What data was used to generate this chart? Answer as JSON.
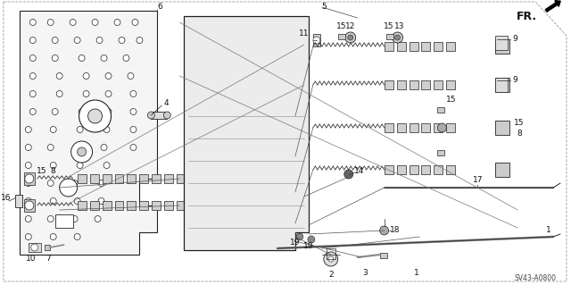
{
  "figsize": [
    6.4,
    3.19
  ],
  "dpi": 100,
  "bg": "#ffffff",
  "lc": "#222222",
  "diagram_code": "SV43-A0800",
  "fr_text": "FR.",
  "font_size": 6.5,
  "label_font_size": 7
}
